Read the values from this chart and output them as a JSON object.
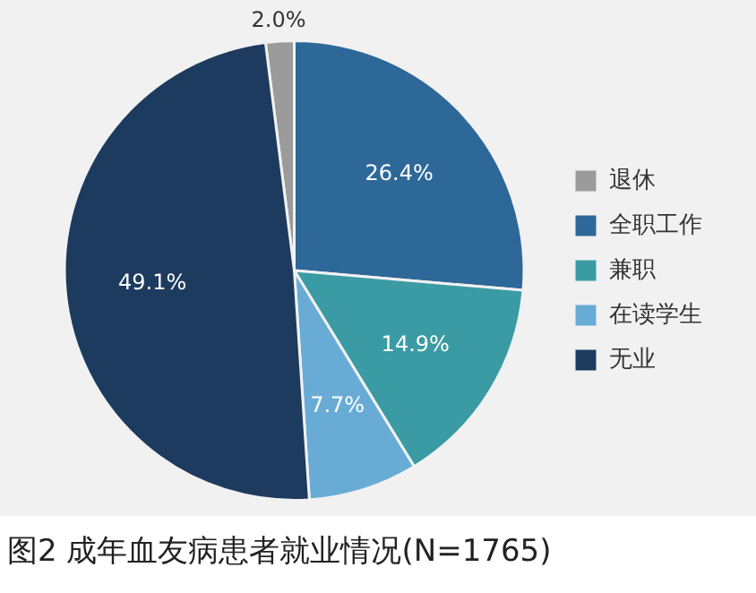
{
  "chart_data": {
    "type": "pie",
    "title": "图2  成年血友病患者就业情况(N=1765)",
    "categories": [
      "退休",
      "全职工作",
      "兼职",
      "在读学生",
      "无业"
    ],
    "values": [
      2.0,
      26.4,
      14.9,
      7.7,
      49.1
    ],
    "value_labels": [
      "2.0%",
      "26.4%",
      "14.9%",
      "7.7%",
      "49.1%"
    ],
    "colors": [
      "#9b9b9b",
      "#2d6898",
      "#3a9ba4",
      "#68acd6",
      "#1d3b5e"
    ],
    "legend": "right"
  }
}
